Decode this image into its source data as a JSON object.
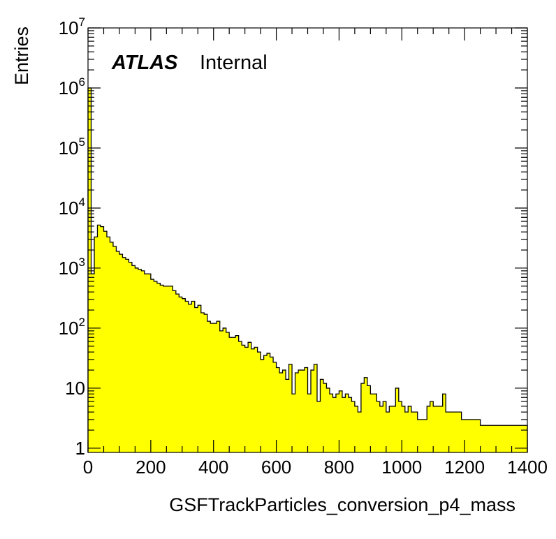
{
  "chart_data": {
    "type": "histogram",
    "xlabel": "GSFTrackParticles_conversion_p4_mass",
    "ylabel": "Entries",
    "label_bold": "ATLAS",
    "label_normal": "Internal",
    "xlim": [
      0,
      1400
    ],
    "ylim": [
      0.85,
      10000000
    ],
    "yscale": "log",
    "bin_width": 10,
    "fill_color": "#ffff00",
    "line_color": "#000000",
    "x_ticks": [
      "0",
      "200",
      "400",
      "600",
      "800",
      "1000",
      "1200",
      "1400"
    ],
    "y_ticks": [
      {
        "value": 1,
        "base": "1",
        "exp": ""
      },
      {
        "value": 10,
        "base": "10",
        "exp": ""
      },
      {
        "value": 100,
        "base": "10",
        "exp": "2"
      },
      {
        "value": 1000,
        "base": "10",
        "exp": "3"
      },
      {
        "value": 10000,
        "base": "10",
        "exp": "4"
      },
      {
        "value": 100000,
        "base": "10",
        "exp": "5"
      },
      {
        "value": 1000000,
        "base": "10",
        "exp": "6"
      },
      {
        "value": 10000000,
        "base": "10",
        "exp": "7"
      }
    ],
    "values": [
      1000000,
      800,
      3300,
      5200,
      4900,
      4100,
      3300,
      2700,
      2300,
      1900,
      1700,
      1500,
      1400,
      1250,
      1100,
      1000,
      950,
      900,
      800,
      800,
      650,
      600,
      560,
      520,
      500,
      500,
      500,
      420,
      370,
      330,
      310,
      280,
      250,
      280,
      220,
      240,
      180,
      170,
      130,
      120,
      120,
      130,
      90,
      100,
      85,
      70,
      70,
      75,
      60,
      52,
      48,
      58,
      45,
      48,
      40,
      30,
      35,
      38,
      33,
      27,
      22,
      18,
      20,
      14,
      25,
      8,
      18,
      20,
      20,
      22,
      8,
      20,
      25,
      6,
      14,
      12,
      10,
      8,
      7,
      8,
      9,
      7,
      8,
      7,
      6,
      5,
      4,
      12,
      15,
      11,
      8,
      8,
      6,
      5,
      6,
      4,
      5,
      5,
      10,
      6,
      5,
      4,
      5,
      4,
      4,
      3,
      3,
      3,
      5,
      6,
      5,
      5,
      5,
      8,
      4,
      4,
      4,
      4,
      4,
      3,
      3,
      3,
      3,
      3,
      3,
      2.4,
      2.4,
      2.4,
      2.4,
      2.4,
      2.4,
      2.4,
      2.4,
      2.4,
      2.4,
      2.4,
      2.4,
      2.4,
      2.4,
      2.4
    ]
  }
}
